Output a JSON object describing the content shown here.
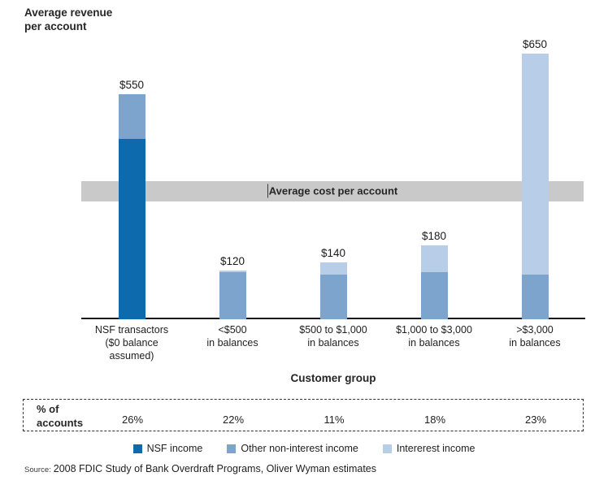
{
  "chart": {
    "title_line1": "Average revenue",
    "title_line2": "per account",
    "xlabel": "Customer group"
  },
  "chart_data": {
    "type": "bar",
    "stacked": true,
    "title": "Average revenue per account",
    "xlabel": "Customer group",
    "ylabel": "",
    "ylim": [
      0,
      780
    ],
    "grid": false,
    "legend_position": "bottom",
    "categories": [
      "NSF transactors ($0 balance assumed)",
      "<$500 in balances",
      "$500 to $1,000 in balances",
      "$1,000 to $3,000 in balances",
      ">$3,000 in balances"
    ],
    "category_label_lines": [
      [
        "NSF transactors",
        "($0 balance",
        "assumed)"
      ],
      [
        "<$500",
        "in balances"
      ],
      [
        "$500 to $1,000",
        "in balances"
      ],
      [
        "$1,000 to $3,000",
        "in balances"
      ],
      [
        ">$3,000",
        "in balances"
      ]
    ],
    "series": [
      {
        "name": "NSF income",
        "color": "#0d6bad",
        "values": [
          440,
          0,
          0,
          0,
          0
        ]
      },
      {
        "name": "Other non-interest income",
        "color": "#7ca4cd",
        "values": [
          110,
          115,
          110,
          115,
          110
        ]
      },
      {
        "name": "Intererest income",
        "color": "#b8cde7",
        "values": [
          0,
          5,
          30,
          65,
          540
        ]
      }
    ],
    "totals": [
      550,
      120,
      140,
      180,
      650
    ],
    "total_labels": [
      "$550",
      "$120",
      "$140",
      "$180",
      "$650"
    ],
    "cost_band": {
      "label": "Average cost per account",
      "value_from": 288,
      "value_to": 337
    },
    "percent_row": {
      "header": "% of accounts",
      "values": [
        "26%",
        "22%",
        "11%",
        "18%",
        "23%"
      ]
    }
  },
  "percent_box": {
    "header_line1": "% of",
    "header_line2": "accounts"
  },
  "source": {
    "prefix": "Source:",
    "text": "2008 FDIC Study of Bank Overdraft Programs, Oliver Wyman estimates"
  }
}
